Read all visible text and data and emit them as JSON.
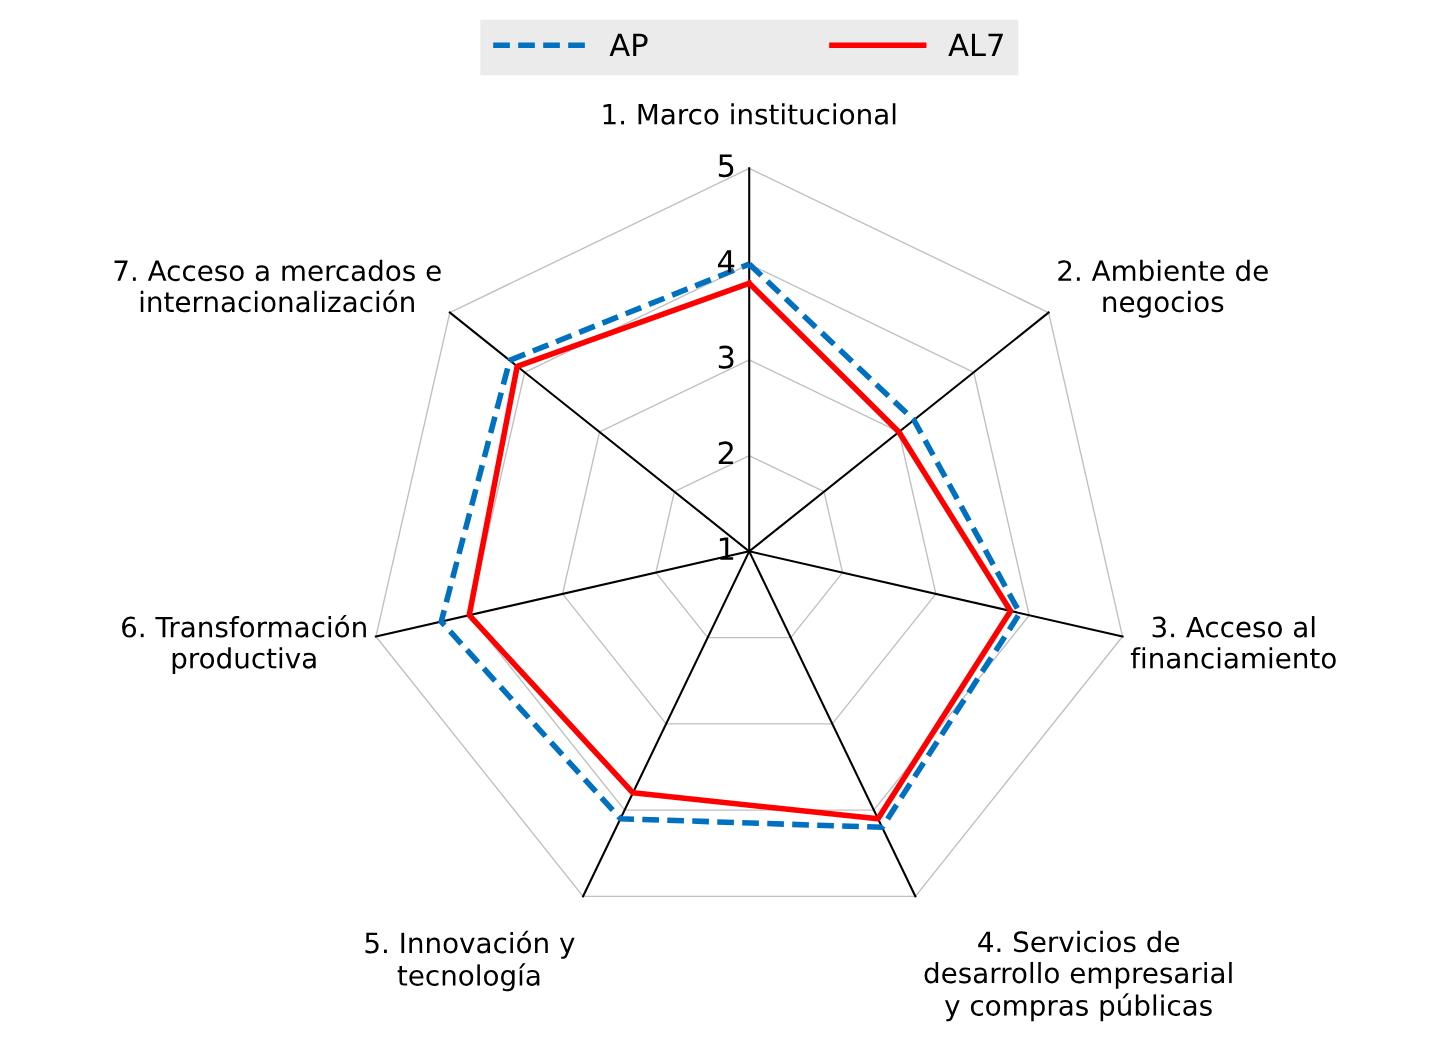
{
  "chart_data": {
    "type": "radar",
    "categories": [
      "1. Marco institucional",
      "2. Ambiente de\nnegocios",
      "3. Acceso al\nfinanciamiento",
      "4. Servicios de\ndesarrollo empresarial\ny compras públicas",
      "5. Innovación y\ntecnología",
      "6. Transformación\nproductiva",
      "7. Acceso a mercados e\ninternacionalización"
    ],
    "series": [
      {
        "name": "AP",
        "color": "#0070c0",
        "line_style": "dashed",
        "values": [
          4.0,
          3.2,
          3.9,
          4.2,
          4.1,
          4.3,
          4.2
        ]
      },
      {
        "name": "AL7",
        "color": "#ff0000",
        "line_style": "solid",
        "values": [
          3.8,
          3.0,
          3.8,
          4.1,
          3.8,
          4.0,
          4.1
        ]
      }
    ],
    "ylim": [
      1,
      5
    ],
    "yticks": [
      1,
      2,
      3,
      4,
      5
    ],
    "grid": true,
    "legend": "top",
    "marker": "none"
  }
}
